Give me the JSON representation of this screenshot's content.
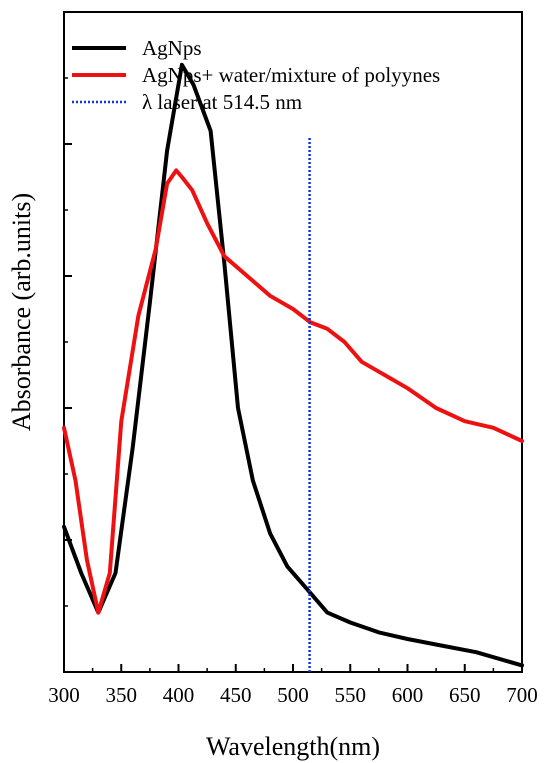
{
  "chart_data": {
    "type": "line",
    "title": "",
    "xlabel": "Wavelength(nm)",
    "ylabel": "Absorbance (arb.units)",
    "xlim": [
      300,
      700
    ],
    "ylim": [
      0,
      1
    ],
    "x_ticks": [
      300,
      350,
      400,
      450,
      500,
      550,
      600,
      650,
      700
    ],
    "y_tick_labels_shown": false,
    "grid": false,
    "legend_position": "top-left",
    "series": [
      {
        "name": "AgNps",
        "color": "#000000",
        "style": "solid",
        "points": [
          [
            300,
            0.22
          ],
          [
            315,
            0.15
          ],
          [
            330,
            0.09
          ],
          [
            345,
            0.15
          ],
          [
            360,
            0.34
          ],
          [
            375,
            0.56
          ],
          [
            390,
            0.79
          ],
          [
            403,
            0.92
          ],
          [
            413,
            0.89
          ],
          [
            428,
            0.82
          ],
          [
            440,
            0.62
          ],
          [
            452,
            0.4
          ],
          [
            465,
            0.29
          ],
          [
            480,
            0.21
          ],
          [
            495,
            0.16
          ],
          [
            510,
            0.13
          ],
          [
            530,
            0.09
          ],
          [
            550,
            0.075
          ],
          [
            575,
            0.06
          ],
          [
            600,
            0.05
          ],
          [
            630,
            0.04
          ],
          [
            660,
            0.03
          ],
          [
            700,
            0.01
          ]
        ]
      },
      {
        "name": "AgNps+ water/mixture of polyynes",
        "color": "#ee1111",
        "style": "solid",
        "points": [
          [
            300,
            0.37
          ],
          [
            310,
            0.29
          ],
          [
            320,
            0.17
          ],
          [
            330,
            0.09
          ],
          [
            340,
            0.15
          ],
          [
            350,
            0.38
          ],
          [
            365,
            0.54
          ],
          [
            380,
            0.64
          ],
          [
            390,
            0.74
          ],
          [
            398,
            0.76
          ],
          [
            403,
            0.75
          ],
          [
            412,
            0.73
          ],
          [
            425,
            0.68
          ],
          [
            440,
            0.63
          ],
          [
            460,
            0.6
          ],
          [
            480,
            0.57
          ],
          [
            500,
            0.55
          ],
          [
            515,
            0.53
          ],
          [
            530,
            0.52
          ],
          [
            545,
            0.5
          ],
          [
            560,
            0.47
          ],
          [
            580,
            0.45
          ],
          [
            600,
            0.43
          ],
          [
            625,
            0.4
          ],
          [
            650,
            0.38
          ],
          [
            675,
            0.37
          ],
          [
            700,
            0.35
          ]
        ]
      },
      {
        "name": "λ laser at 514.5 nm",
        "color": "#1133dd",
        "style": "dotted",
        "x_position": 514.5,
        "y_range": [
          0,
          0.81
        ]
      }
    ]
  }
}
